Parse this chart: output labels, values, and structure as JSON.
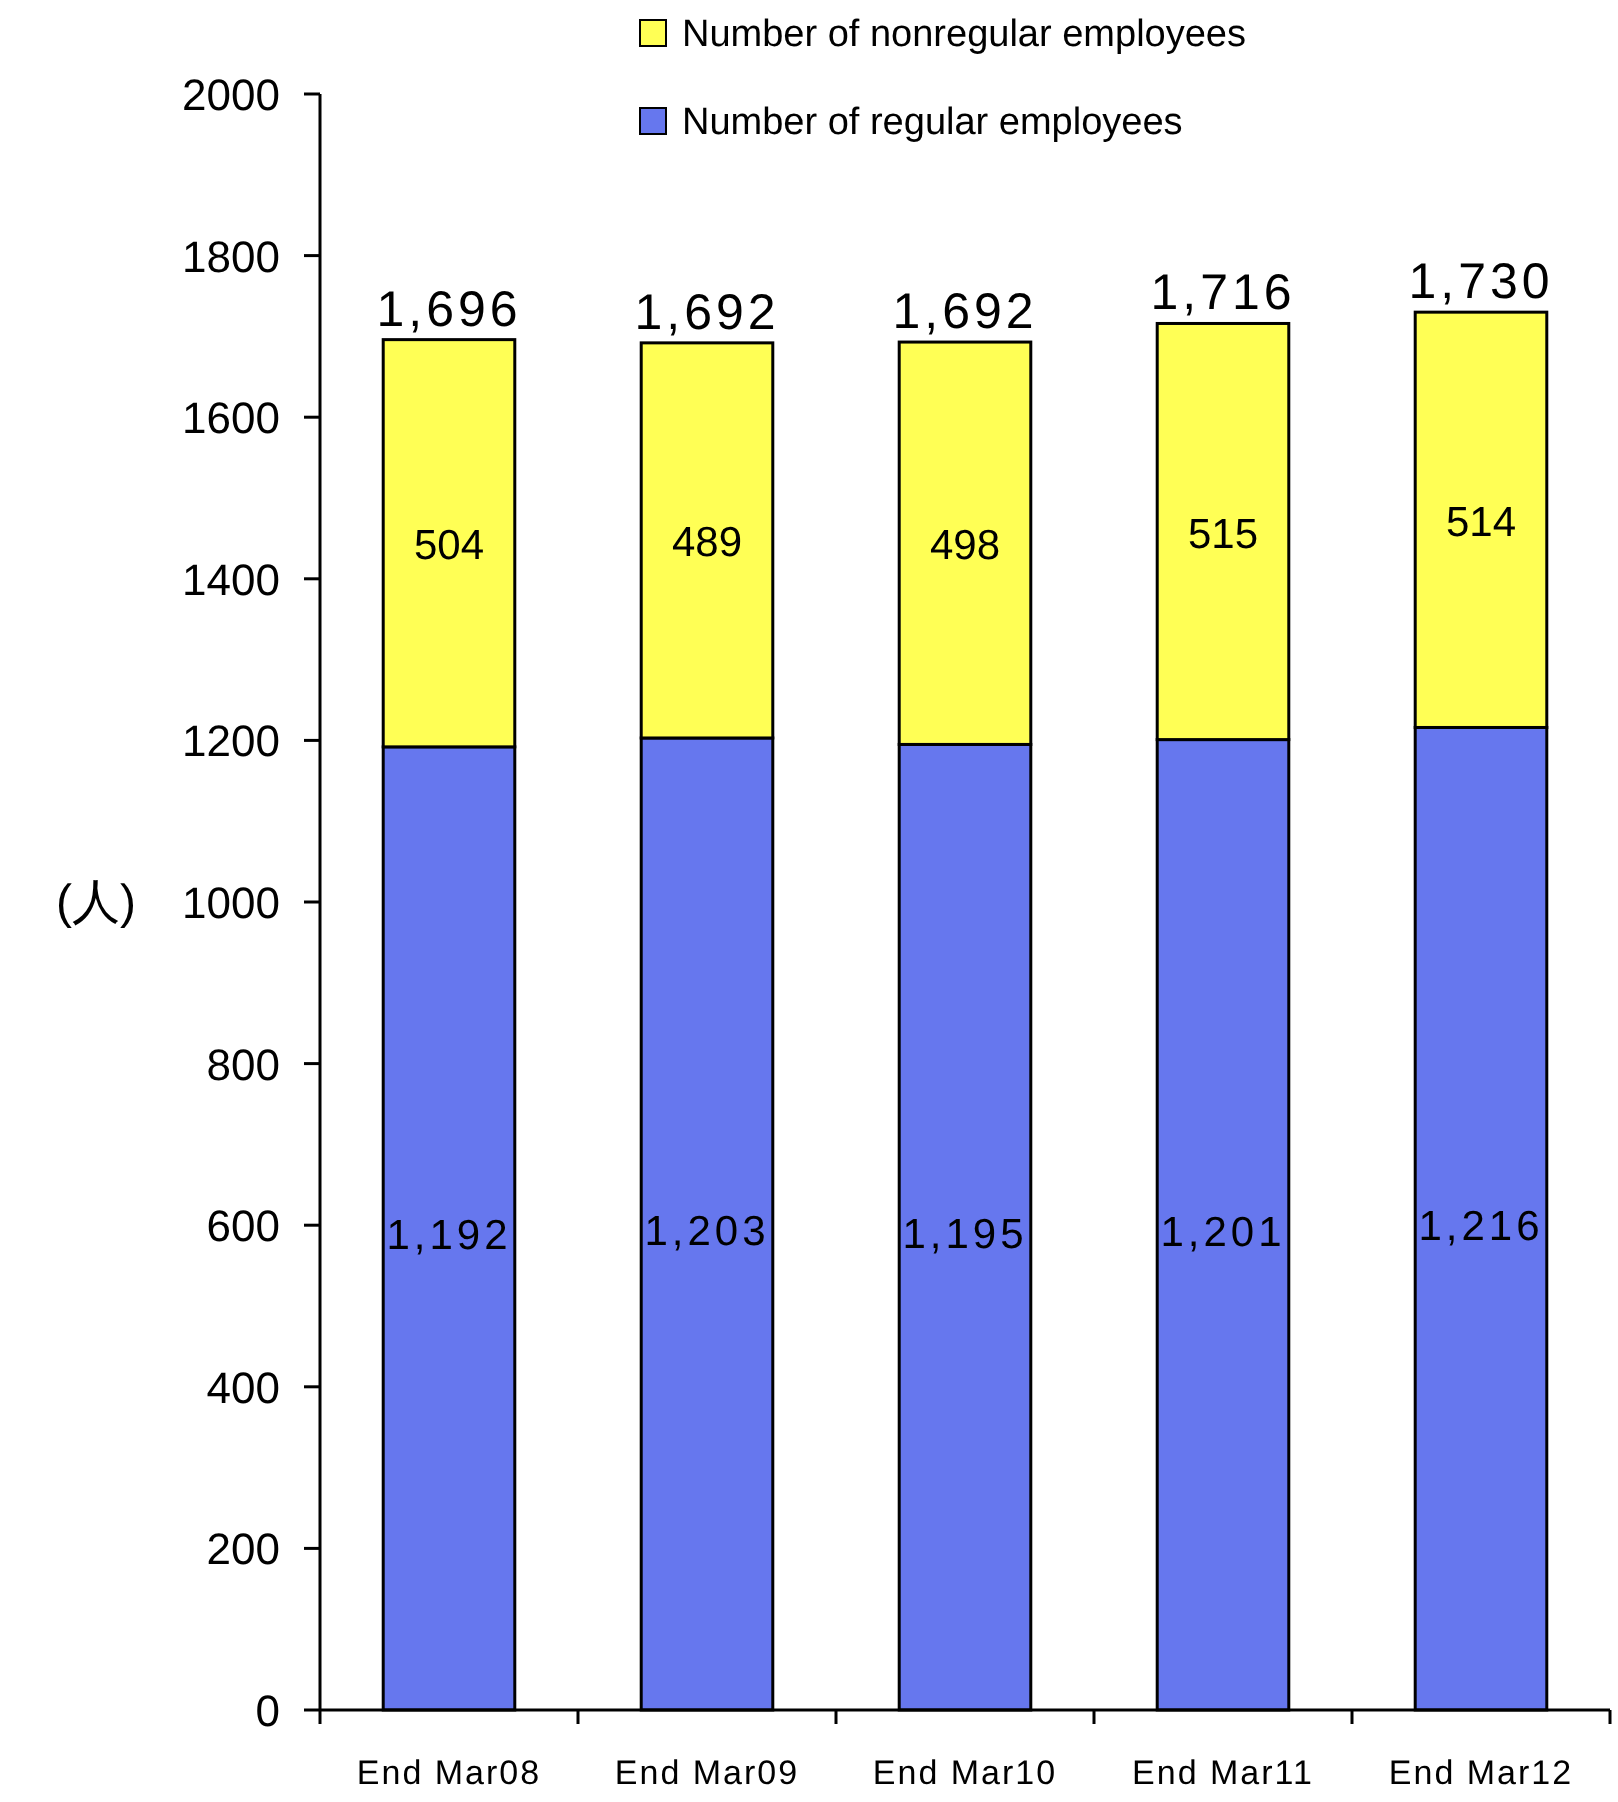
{
  "chart_data": {
    "type": "bar",
    "stacked": true,
    "ylabel": "(人)",
    "categories": [
      "End Mar08",
      "End Mar09",
      "End Mar10",
      "End Mar11",
      "End Mar12"
    ],
    "series": [
      {
        "name": "Number of regular employees",
        "color": "#6677ee",
        "values": [
          1192,
          1203,
          1195,
          1201,
          1216
        ],
        "value_labels": [
          "1,192",
          "1,203",
          "1,195",
          "1,201",
          "1,216"
        ]
      },
      {
        "name": "Number of nonregular employees",
        "color": "#ffff55",
        "values": [
          504,
          489,
          498,
          515,
          514
        ],
        "value_labels": [
          "504",
          "489",
          "498",
          "515",
          "514"
        ]
      }
    ],
    "totals": [
      "1,696",
      "1,692",
      "1,692",
      "1,716",
      "1,730"
    ],
    "ylim": [
      0,
      2000
    ],
    "yticks": [
      0,
      200,
      400,
      600,
      800,
      1000,
      1200,
      1400,
      1600,
      1800,
      2000
    ],
    "grid": false,
    "legend": "top"
  }
}
